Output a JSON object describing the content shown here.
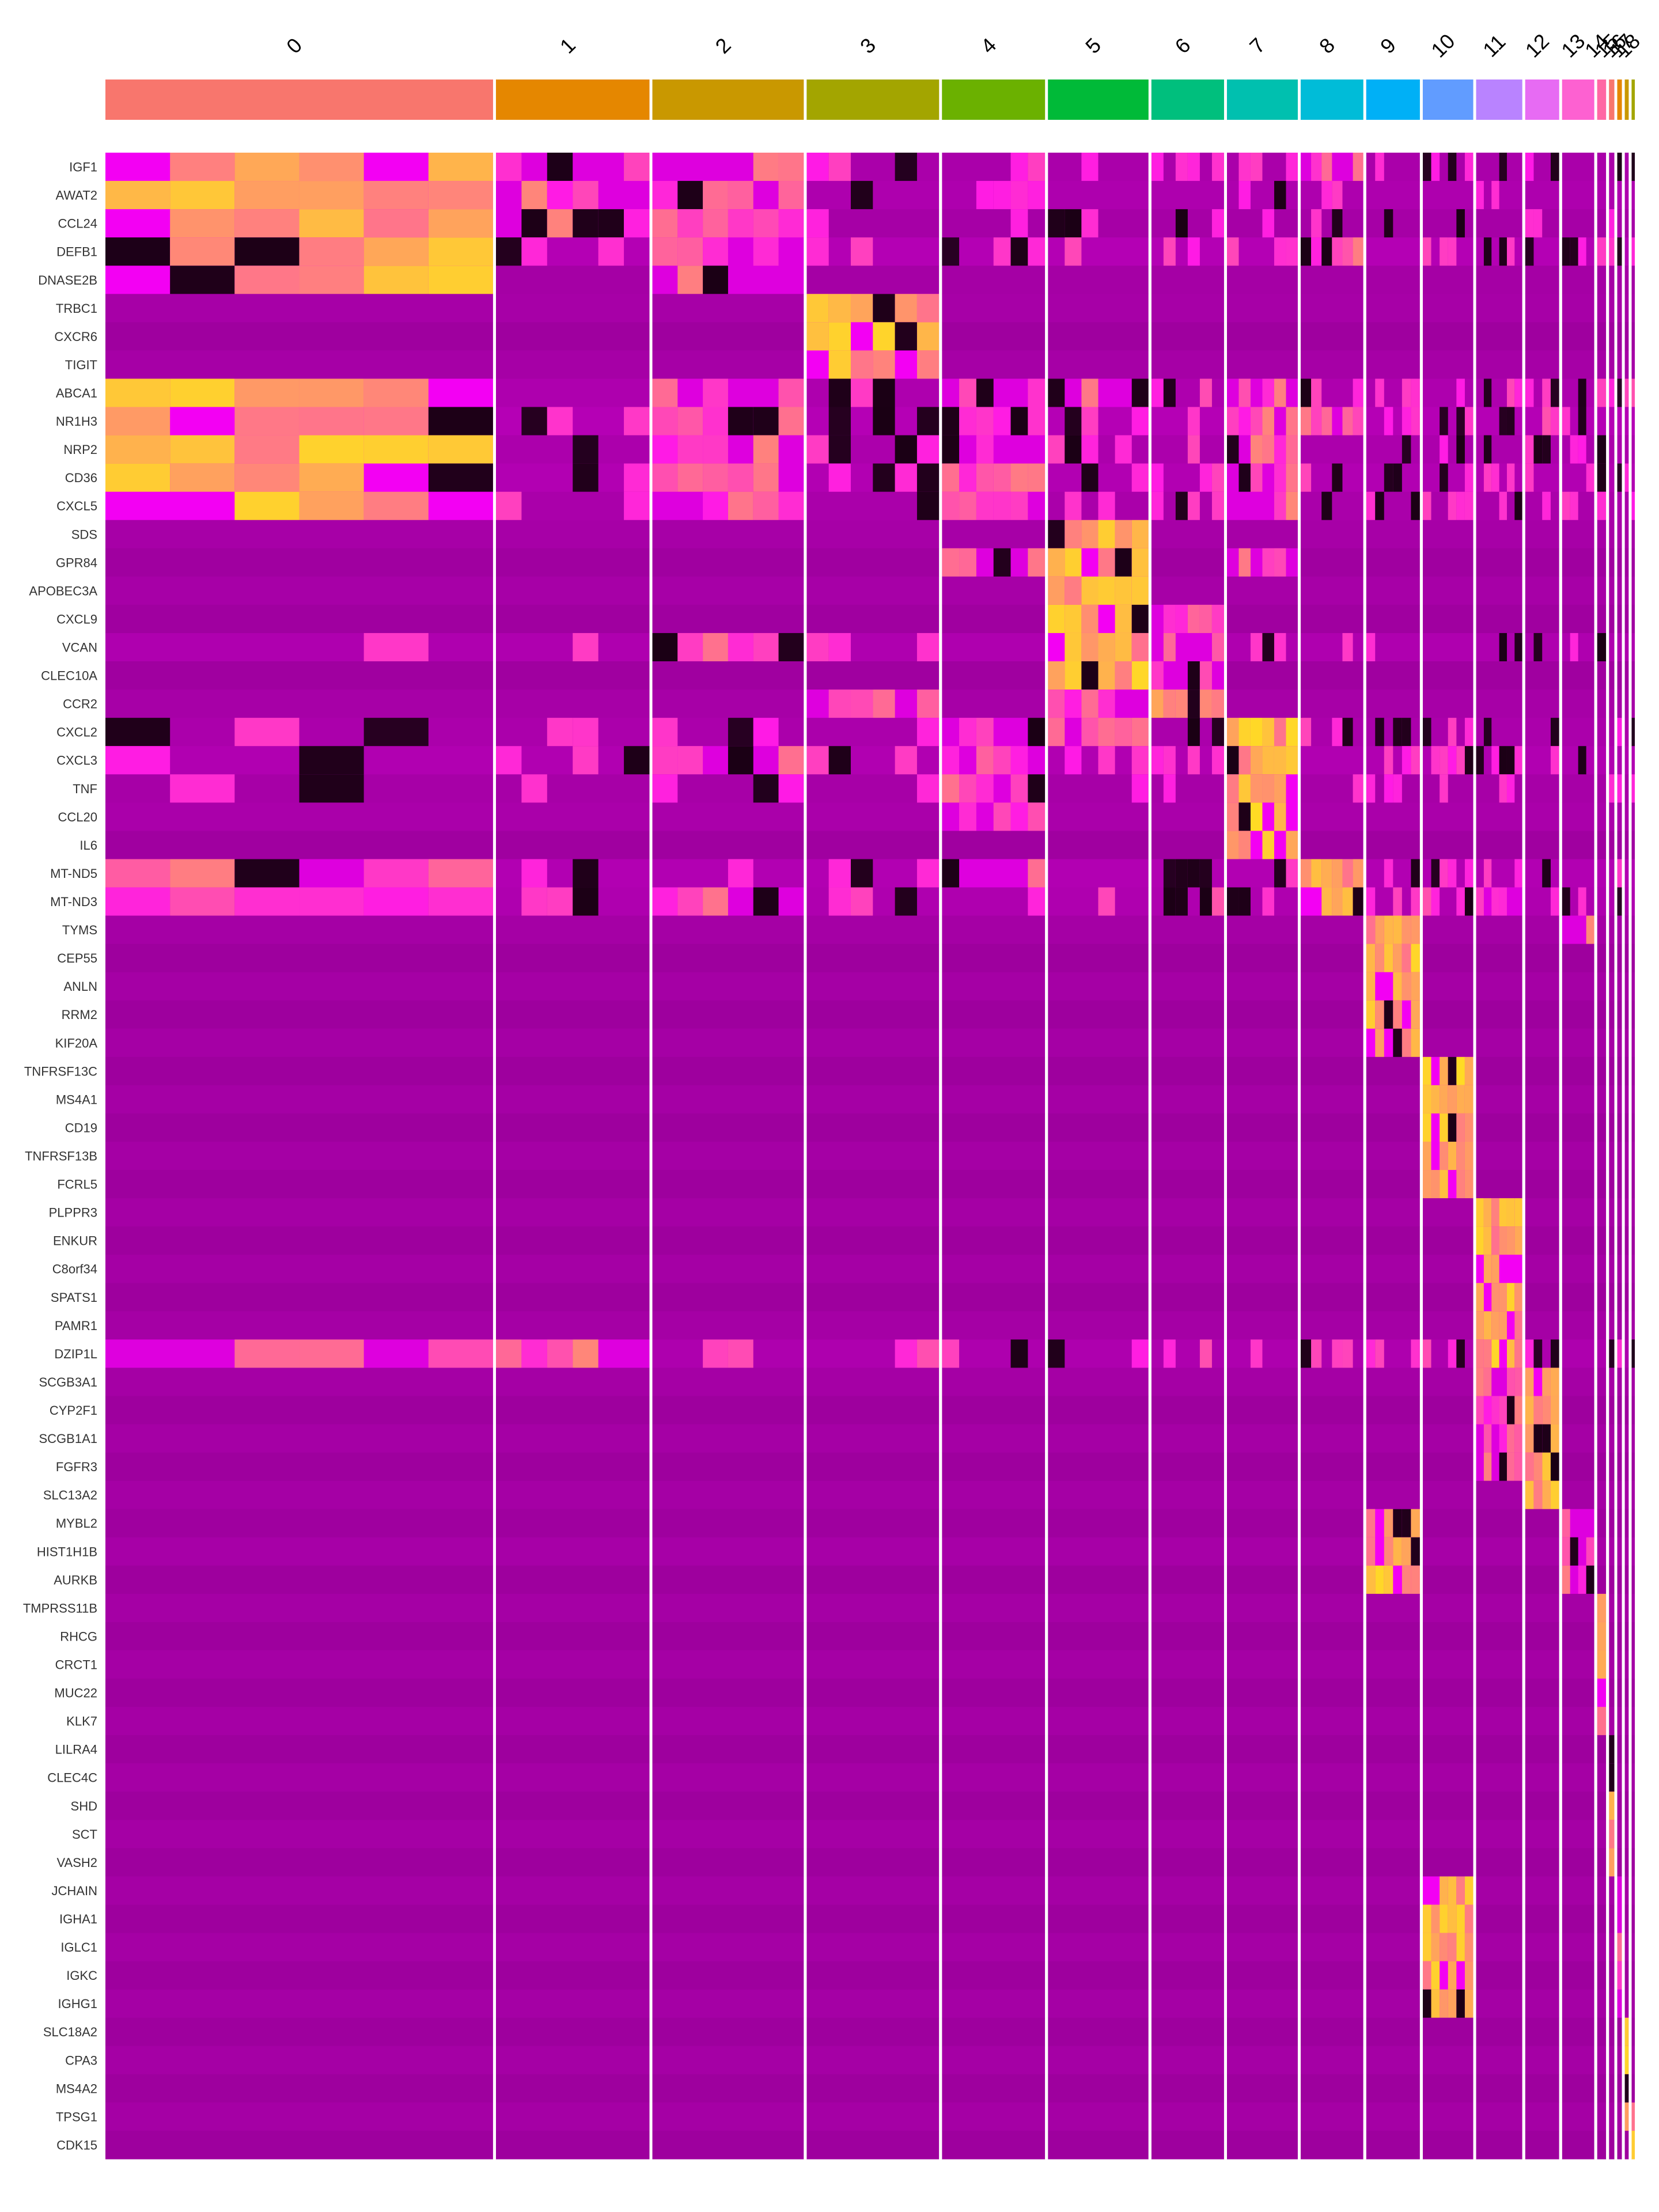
{
  "chart_data": {
    "type": "heatmap",
    "title": "",
    "xlabel": "",
    "ylabel": "",
    "legend": "none",
    "colors": {
      "low": "#8a008a",
      "mid": "#ff00ff",
      "high": "#ffff00",
      "dark": "#1a0014",
      "separator": "#ffffff"
    },
    "clusters": [
      {
        "name": "0",
        "cells": 1083,
        "color": "#F8766D"
      },
      {
        "name": "1",
        "cells": 429,
        "color": "#E58700"
      },
      {
        "name": "2",
        "cells": 423,
        "color": "#C99800"
      },
      {
        "name": "3",
        "cells": 370,
        "color": "#A3A500"
      },
      {
        "name": "4",
        "cells": 288,
        "color": "#6BB100"
      },
      {
        "name": "5",
        "cells": 281,
        "color": "#00BA38"
      },
      {
        "name": "6",
        "cells": 203,
        "color": "#00BF7D"
      },
      {
        "name": "7",
        "cells": 198,
        "color": "#00C0AF"
      },
      {
        "name": "8",
        "cells": 175,
        "color": "#00BCD8"
      },
      {
        "name": "9",
        "cells": 150,
        "color": "#00B0F6"
      },
      {
        "name": "10",
        "cells": 141,
        "color": "#619CFF"
      },
      {
        "name": "11",
        "cells": 129,
        "color": "#B983FF"
      },
      {
        "name": "12",
        "cells": 95,
        "color": "#E76BF3"
      },
      {
        "name": "13",
        "cells": 90,
        "color": "#FD61D1"
      },
      {
        "name": "14",
        "cells": 25,
        "color": "#FF67A4"
      },
      {
        "name": "15",
        "cells": 15,
        "color": "#F8766D"
      },
      {
        "name": "16",
        "cells": 13,
        "color": "#E58700"
      },
      {
        "name": "17",
        "cells": 11,
        "color": "#C99800"
      },
      {
        "name": "18",
        "cells": 9,
        "color": "#A3A500"
      }
    ],
    "genes": [
      {
        "name": "IGF1",
        "base": 0.22,
        "hi": [
          0,
          1,
          2,
          8
        ]
      },
      {
        "name": "AWAT2",
        "base": 0.18,
        "hi": [
          0,
          1,
          2
        ]
      },
      {
        "name": "CCL24",
        "base": 0.16,
        "hi": [
          0,
          1,
          2
        ]
      },
      {
        "name": "DEFB1",
        "base": 0.28,
        "hi": [
          0,
          2,
          8
        ]
      },
      {
        "name": "DNASE2B",
        "base": 0.14,
        "hi": [
          0,
          2
        ]
      },
      {
        "name": "TRBC1",
        "base": 0.05,
        "hi": [
          3
        ]
      },
      {
        "name": "CXCR6",
        "base": 0.04,
        "hi": [
          3
        ]
      },
      {
        "name": "TIGIT",
        "base": 0.04,
        "hi": [
          3
        ]
      },
      {
        "name": "ABCA1",
        "base": 0.3,
        "hi": [
          0,
          2,
          4,
          5,
          7
        ]
      },
      {
        "name": "NR1H3",
        "base": 0.3,
        "hi": [
          0,
          2,
          4,
          7,
          8
        ]
      },
      {
        "name": "NRP2",
        "base": 0.26,
        "hi": [
          0,
          2,
          4,
          7
        ]
      },
      {
        "name": "CD36",
        "base": 0.24,
        "hi": [
          0,
          2,
          4,
          7
        ]
      },
      {
        "name": "CXCL5",
        "base": 0.22,
        "hi": [
          0,
          2,
          4,
          7
        ]
      },
      {
        "name": "SDS",
        "base": 0.05,
        "hi": [
          5
        ]
      },
      {
        "name": "GPR84",
        "base": 0.05,
        "hi": [
          5,
          4,
          7
        ]
      },
      {
        "name": "APOBEC3A",
        "base": 0.05,
        "hi": [
          5
        ]
      },
      {
        "name": "CXCL9",
        "base": 0.05,
        "hi": [
          5,
          6
        ]
      },
      {
        "name": "VCAN",
        "base": 0.2,
        "hi": [
          5,
          6,
          2
        ]
      },
      {
        "name": "CLEC10A",
        "base": 0.06,
        "hi": [
          5,
          6
        ]
      },
      {
        "name": "CCR2",
        "base": 0.05,
        "hi": [
          6,
          5,
          3
        ]
      },
      {
        "name": "CXCL2",
        "base": 0.24,
        "hi": [
          7,
          4,
          5
        ]
      },
      {
        "name": "CXCL3",
        "base": 0.22,
        "hi": [
          7,
          2,
          4
        ]
      },
      {
        "name": "TNF",
        "base": 0.18,
        "hi": [
          7,
          4
        ]
      },
      {
        "name": "CCL20",
        "base": 0.1,
        "hi": [
          7,
          4
        ]
      },
      {
        "name": "IL6",
        "base": 0.06,
        "hi": [
          7
        ]
      },
      {
        "name": "MT-ND5",
        "base": 0.24,
        "hi": [
          8,
          0,
          4
        ]
      },
      {
        "name": "MT-ND3",
        "base": 0.32,
        "hi": [
          8,
          2,
          11
        ]
      },
      {
        "name": "TYMS",
        "base": 0.03,
        "hi": [
          9,
          13
        ]
      },
      {
        "name": "CEP55",
        "base": 0.03,
        "hi": [
          9
        ]
      },
      {
        "name": "ANLN",
        "base": 0.03,
        "hi": [
          9
        ]
      },
      {
        "name": "RRM2",
        "base": 0.03,
        "hi": [
          9
        ]
      },
      {
        "name": "KIF20A",
        "base": 0.03,
        "hi": [
          9
        ]
      },
      {
        "name": "TNFRSF13C",
        "base": 0.03,
        "hi": [
          10
        ]
      },
      {
        "name": "MS4A1",
        "base": 0.03,
        "hi": [
          10
        ]
      },
      {
        "name": "CD19",
        "base": 0.03,
        "hi": [
          10
        ]
      },
      {
        "name": "TNFRSF13B",
        "base": 0.03,
        "hi": [
          10
        ]
      },
      {
        "name": "FCRL5",
        "base": 0.03,
        "hi": [
          10
        ]
      },
      {
        "name": "PLPPR3",
        "base": 0.03,
        "hi": [
          11
        ]
      },
      {
        "name": "ENKUR",
        "base": 0.03,
        "hi": [
          11
        ]
      },
      {
        "name": "C8orf34",
        "base": 0.03,
        "hi": [
          11
        ]
      },
      {
        "name": "SPATS1",
        "base": 0.03,
        "hi": [
          11
        ]
      },
      {
        "name": "PAMR1",
        "base": 0.03,
        "hi": [
          11
        ]
      },
      {
        "name": "DZIP1L",
        "base": 0.3,
        "hi": [
          11,
          0,
          1
        ]
      },
      {
        "name": "SCGB3A1",
        "base": 0.03,
        "hi": [
          12,
          11
        ]
      },
      {
        "name": "CYP2F1",
        "base": 0.03,
        "hi": [
          12,
          11
        ]
      },
      {
        "name": "SCGB1A1",
        "base": 0.03,
        "hi": [
          12,
          11
        ]
      },
      {
        "name": "FGFR3",
        "base": 0.03,
        "hi": [
          12,
          11
        ]
      },
      {
        "name": "SLC13A2",
        "base": 0.03,
        "hi": [
          12
        ]
      },
      {
        "name": "MYBL2",
        "base": 0.04,
        "hi": [
          9,
          13
        ]
      },
      {
        "name": "HIST1H1B",
        "base": 0.05,
        "hi": [
          9,
          13
        ]
      },
      {
        "name": "AURKB",
        "base": 0.03,
        "hi": [
          9,
          13
        ]
      },
      {
        "name": "TMPRSS11B",
        "base": 0.02,
        "hi": [
          14
        ]
      },
      {
        "name": "RHCG",
        "base": 0.02,
        "hi": [
          14
        ]
      },
      {
        "name": "CRCT1",
        "base": 0.02,
        "hi": [
          14
        ]
      },
      {
        "name": "MUC22",
        "base": 0.02,
        "hi": [
          14
        ]
      },
      {
        "name": "KLK7",
        "base": 0.02,
        "hi": [
          14
        ]
      },
      {
        "name": "LILRA4",
        "base": 0.02,
        "hi": [
          15
        ]
      },
      {
        "name": "CLEC4C",
        "base": 0.02,
        "hi": [
          15
        ]
      },
      {
        "name": "SHD",
        "base": 0.02,
        "hi": [
          15
        ]
      },
      {
        "name": "SCT",
        "base": 0.02,
        "hi": [
          15
        ]
      },
      {
        "name": "VASH2",
        "base": 0.02,
        "hi": [
          15
        ]
      },
      {
        "name": "JCHAIN",
        "base": 0.03,
        "hi": [
          10,
          16
        ]
      },
      {
        "name": "IGHA1",
        "base": 0.03,
        "hi": [
          10,
          16
        ]
      },
      {
        "name": "IGLC1",
        "base": 0.03,
        "hi": [
          10,
          16
        ]
      },
      {
        "name": "IGKC",
        "base": 0.03,
        "hi": [
          10,
          16
        ]
      },
      {
        "name": "IGHG1",
        "base": 0.03,
        "hi": [
          10,
          16
        ]
      },
      {
        "name": "SLC18A2",
        "base": 0.02,
        "hi": [
          17
        ]
      },
      {
        "name": "CPA3",
        "base": 0.02,
        "hi": [
          17
        ]
      },
      {
        "name": "MS4A2",
        "base": 0.02,
        "hi": [
          17
        ]
      },
      {
        "name": "TPSG1",
        "base": 0.02,
        "hi": [
          17,
          18
        ]
      },
      {
        "name": "CDK15",
        "base": 0.02,
        "hi": [
          18
        ]
      }
    ]
  }
}
